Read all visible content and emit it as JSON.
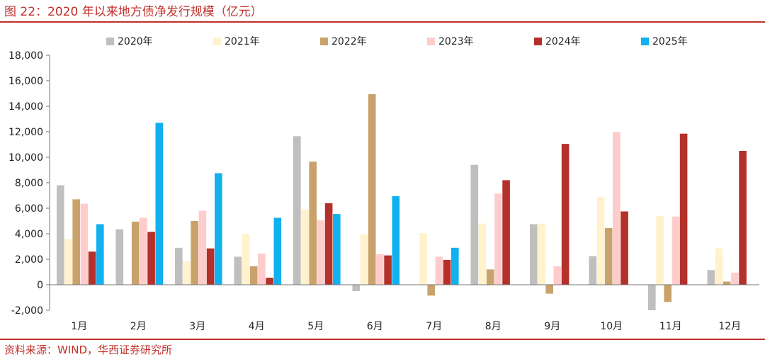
{
  "header": {
    "title": "图 22：2020 年以来地方债净发行规模（亿元）"
  },
  "footer": {
    "source": "资料来源：WIND，华西证券研究所"
  },
  "chart_data": {
    "type": "bar",
    "title": "2020 年以来地方债净发行规模（亿元）",
    "xlabel": "",
    "ylabel": "",
    "ylim": [
      -2000,
      18000
    ],
    "yticks": [
      -2000,
      0,
      2000,
      4000,
      6000,
      8000,
      10000,
      12000,
      14000,
      16000,
      18000
    ],
    "ytick_labels": [
      "-2,000",
      "0",
      "2,000",
      "4,000",
      "6,000",
      "8,000",
      "10,000",
      "12,000",
      "14,000",
      "16,000",
      "18,000"
    ],
    "grid": false,
    "legend_position": "top",
    "categories": [
      "1月",
      "2月",
      "3月",
      "4月",
      "5月",
      "6月",
      "7月",
      "8月",
      "9月",
      "10月",
      "11月",
      "12月"
    ],
    "series": [
      {
        "name": "2020年",
        "color": "#bfbfbf",
        "values": [
          7800,
          4350,
          2900,
          2200,
          11650,
          -500,
          0,
          9400,
          4750,
          2250,
          -2000,
          1150
        ]
      },
      {
        "name": "2021年",
        "color": "#fff2cc",
        "values": [
          3600,
          0,
          1850,
          4000,
          5900,
          3950,
          4050,
          4800,
          4800,
          6900,
          5400,
          2850
        ]
      },
      {
        "name": "2022年",
        "color": "#c9a26b",
        "values": [
          6700,
          4950,
          5000,
          1450,
          9650,
          14950,
          -850,
          1200,
          -700,
          4450,
          -1350,
          250
        ]
      },
      {
        "name": "2023年",
        "color": "#ffcccc",
        "values": [
          6350,
          5250,
          5800,
          2450,
          5050,
          2400,
          2200,
          7150,
          1450,
          12000,
          5350,
          950
        ]
      },
      {
        "name": "2024年",
        "color": "#b3302b",
        "values": [
          2600,
          4150,
          2850,
          550,
          6400,
          2300,
          1950,
          8200,
          11050,
          5750,
          11850,
          10500
        ]
      },
      {
        "name": "2025年",
        "color": "#11b0ef",
        "values": [
          4750,
          12700,
          8750,
          5250,
          5550,
          6950,
          2900,
          null,
          null,
          null,
          null,
          null
        ]
      }
    ]
  }
}
